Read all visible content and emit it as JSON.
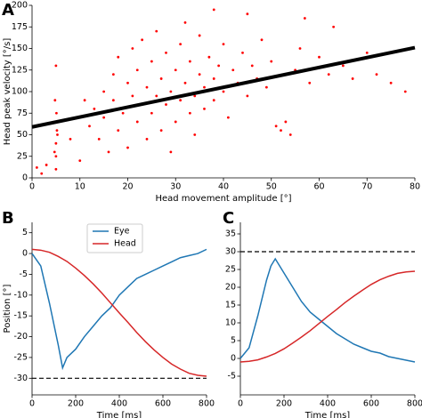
{
  "chart_data": [
    {
      "type": "scatter",
      "panel_label": "A",
      "xlabel": "Head movement amplitude [°]",
      "ylabel": "Head peak velocity [°/s]",
      "color": "#ff0000",
      "x": [
        5,
        5,
        5,
        5.2,
        4.9,
        5.1,
        4.8,
        5,
        5.3,
        4.7,
        2,
        3,
        1,
        12,
        13,
        14,
        15,
        15,
        16,
        17,
        17,
        18,
        18,
        19,
        20,
        20,
        21,
        21,
        22,
        22,
        23,
        23,
        24,
        24,
        25,
        25,
        26,
        26,
        27,
        27,
        28,
        28,
        29,
        29,
        30,
        30,
        31,
        31,
        32,
        32,
        33,
        33,
        34,
        34,
        35,
        35,
        36,
        36,
        37,
        38,
        38,
        39,
        40,
        40,
        41,
        42,
        43,
        44,
        45,
        46,
        47,
        48,
        49,
        50,
        51,
        52,
        53,
        54,
        55,
        56,
        58,
        60,
        62,
        63,
        65,
        67,
        70,
        72,
        75,
        78,
        38,
        45,
        57,
        8,
        10,
        11
      ],
      "y": [
        10,
        25,
        40,
        55,
        65,
        75,
        90,
        130,
        50,
        30,
        5,
        15,
        12,
        60,
        80,
        45,
        100,
        70,
        30,
        90,
        120,
        55,
        140,
        75,
        110,
        35,
        95,
        150,
        65,
        125,
        85,
        160,
        45,
        105,
        135,
        75,
        95,
        170,
        55,
        115,
        145,
        85,
        100,
        30,
        125,
        65,
        155,
        90,
        110,
        180,
        75,
        135,
        95,
        50,
        120,
        165,
        105,
        80,
        140,
        90,
        115,
        130,
        100,
        155,
        70,
        125,
        110,
        145,
        95,
        130,
        115,
        160,
        105,
        135,
        60,
        55,
        65,
        50,
        125,
        150,
        110,
        140,
        120,
        175,
        130,
        115,
        145,
        120,
        110,
        100,
        195,
        190,
        185,
        45,
        20,
        90
      ],
      "fit": {
        "x": [
          0,
          80
        ],
        "y": [
          59,
          151
        ],
        "color": "#000000"
      },
      "xlim": [
        0,
        80
      ],
      "ylim": [
        0,
        200
      ],
      "xticks": [
        0,
        10,
        20,
        30,
        40,
        50,
        60,
        70,
        80
      ],
      "yticks": [
        0,
        25,
        50,
        75,
        100,
        125,
        150,
        175,
        200
      ]
    },
    {
      "type": "line",
      "panel_label": "B",
      "xlabel": "Time [ms]",
      "ylabel": "Position [°]",
      "legend": "upper center",
      "x": [
        0,
        40,
        80,
        120,
        140,
        160,
        200,
        240,
        280,
        320,
        360,
        400,
        440,
        480,
        520,
        560,
        600,
        640,
        680,
        720,
        760,
        800
      ],
      "series": [
        {
          "name": "Eye",
          "color": "#1f77b4",
          "values": [
            0,
            -3,
            -12,
            -22,
            -27.5,
            -25,
            -23,
            -20,
            -17.5,
            -15,
            -13,
            -10,
            -8,
            -6,
            -5,
            -4,
            -3,
            -2,
            -1,
            -0.5,
            0,
            1
          ]
        },
        {
          "name": "Head",
          "color": "#d62728",
          "values": [
            1,
            0.8,
            0.3,
            -0.7,
            -1.3,
            -1.9,
            -3.5,
            -5.3,
            -7.3,
            -9.5,
            -11.9,
            -14.3,
            -16.6,
            -19,
            -21.2,
            -23.2,
            -25,
            -26.6,
            -27.8,
            -28.8,
            -29.3,
            -29.5
          ]
        }
      ],
      "reference_line": -30,
      "xlim": [
        0,
        800
      ],
      "ylim": [
        -34,
        7.5
      ],
      "xticks": [
        0,
        200,
        400,
        600,
        800
      ],
      "yticks": [
        5,
        0,
        -5,
        -10,
        -15,
        -20,
        -25,
        -30
      ]
    },
    {
      "type": "line",
      "panel_label": "C",
      "xlabel": "Time [ms]",
      "x": [
        0,
        40,
        80,
        120,
        140,
        160,
        200,
        240,
        280,
        320,
        360,
        400,
        440,
        480,
        520,
        560,
        600,
        640,
        680,
        720,
        760,
        800
      ],
      "series": [
        {
          "color": "#1f77b4",
          "values": [
            0,
            3,
            12,
            22,
            26,
            28,
            24,
            20,
            16,
            13,
            11,
            9,
            7,
            5.5,
            4,
            3,
            2,
            1.5,
            0.5,
            0,
            -0.5,
            -1
          ]
        },
        {
          "color": "#d62728",
          "values": [
            -1,
            -0.8,
            -0.4,
            0.4,
            0.9,
            1.4,
            2.7,
            4.3,
            6,
            7.8,
            9.8,
            11.8,
            13.7,
            15.7,
            17.5,
            19.2,
            20.8,
            22.1,
            23.1,
            23.9,
            24.3,
            24.5
          ]
        }
      ],
      "reference_line": 30,
      "xlim": [
        0,
        800
      ],
      "ylim": [
        -10.25,
        38.25
      ],
      "xticks": [
        0,
        200,
        400,
        600,
        800
      ],
      "yticks": [
        -5,
        0,
        5,
        10,
        15,
        20,
        25,
        30,
        35
      ]
    }
  ]
}
